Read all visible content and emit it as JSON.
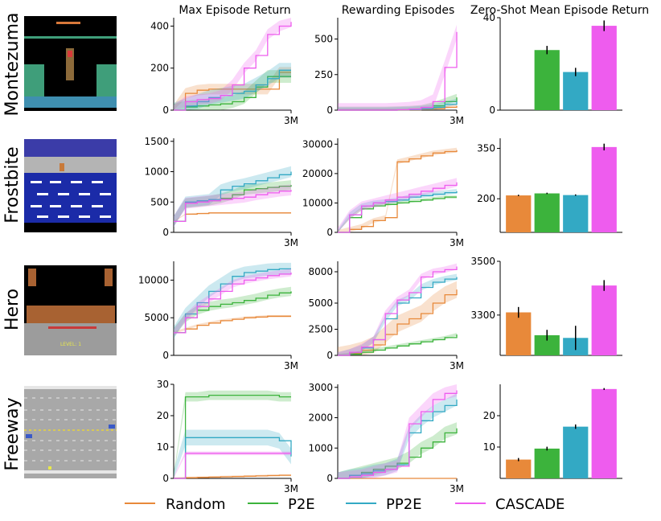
{
  "figure": {
    "column_titles": [
      "Max Episode Return",
      "Rewarding Episodes",
      "Zero-Shot Mean Episode Return"
    ],
    "legend": [
      "Random",
      "P2E",
      "PP2E",
      "CASCADE"
    ],
    "colors": {
      "Random": "#e8893a",
      "P2E": "#3cb33c",
      "PP2E": "#33a9c4",
      "CASCADE": "#ee5cee"
    },
    "x_end_label": "3M"
  },
  "games": [
    {
      "name": "Montezuma",
      "thumb_colors": {
        "bg": "#000000",
        "platform": "#3f9e7a",
        "floor": "#3f8fb0"
      }
    },
    {
      "name": "Frostbite",
      "thumb_colors": {
        "sky": "#3b3ca8",
        "shore": "#b4b4b4",
        "water": "#1b2ba8",
        "ice": "#ffffff"
      }
    },
    {
      "name": "Hero",
      "thumb_colors": {
        "bg": "#000000",
        "wall": "#a86232",
        "panel": "#9c9c9c"
      },
      "thumb_text": "LEVEL: 1"
    },
    {
      "name": "Freeway",
      "thumb_colors": {
        "road": "#a8a8a8",
        "lane": "#e6e6e6",
        "median": "#e8d43c"
      }
    }
  ],
  "chart_data": [
    {
      "type": "line",
      "game": "Montezuma",
      "metric": "Max Episode Return",
      "xlim": [
        0,
        3
      ],
      "ylim": [
        0,
        440
      ],
      "yticks": [
        0,
        200,
        400
      ],
      "x": [
        0,
        0.3,
        0.6,
        0.9,
        1.2,
        1.5,
        1.8,
        2.1,
        2.4,
        2.7,
        3.0
      ],
      "series": [
        {
          "name": "Random",
          "values": [
            0,
            80,
            95,
            100,
            100,
            100,
            100,
            100,
            100,
            180,
            180
          ],
          "spread": 25
        },
        {
          "name": "P2E",
          "values": [
            0,
            15,
            20,
            25,
            30,
            40,
            60,
            110,
            160,
            160,
            160
          ],
          "spread": 30
        },
        {
          "name": "PP2E",
          "values": [
            0,
            20,
            40,
            60,
            70,
            80,
            90,
            120,
            150,
            190,
            190
          ],
          "spread": 35
        },
        {
          "name": "CASCADE",
          "values": [
            0,
            40,
            50,
            55,
            70,
            120,
            200,
            260,
            360,
            400,
            420
          ],
          "spread": 25
        }
      ]
    },
    {
      "type": "line",
      "game": "Montezuma",
      "metric": "Rewarding Episodes",
      "xlim": [
        0,
        3
      ],
      "ylim": [
        0,
        650
      ],
      "yticks": [
        0,
        250,
        500
      ],
      "x": [
        0,
        0.3,
        0.6,
        0.9,
        1.2,
        1.5,
        1.8,
        2.1,
        2.4,
        2.7,
        3.0
      ],
      "series": [
        {
          "name": "Random",
          "values": [
            0,
            0,
            0,
            0,
            0,
            0,
            2,
            5,
            10,
            20,
            30
          ],
          "spread": 10
        },
        {
          "name": "P2E",
          "values": [
            0,
            0,
            0,
            0,
            0,
            2,
            5,
            10,
            30,
            60,
            90
          ],
          "spread": 25
        },
        {
          "name": "PP2E",
          "values": [
            0,
            0,
            0,
            0,
            0,
            2,
            4,
            10,
            20,
            40,
            60
          ],
          "spread": 20
        },
        {
          "name": "CASCADE",
          "values": [
            0,
            0,
            0,
            0,
            0,
            3,
            8,
            20,
            60,
            300,
            550
          ],
          "spread": 50
        }
      ]
    },
    {
      "type": "bar",
      "game": "Montezuma",
      "metric": "Zero-Shot Mean Episode Return",
      "categories": [
        "Random",
        "P2E",
        "PP2E",
        "CASCADE"
      ],
      "values": [
        0,
        26,
        16.5,
        36.5
      ],
      "errors": [
        0,
        1.8,
        1.8,
        2.3
      ],
      "ylim": [
        0,
        40
      ],
      "yticks": [
        0,
        40
      ]
    },
    {
      "type": "line",
      "game": "Frostbite",
      "metric": "Max Episode Return",
      "xlim": [
        0,
        3
      ],
      "ylim": [
        0,
        1550
      ],
      "yticks": [
        0,
        500,
        1000,
        1500
      ],
      "x": [
        0,
        0.3,
        0.6,
        0.9,
        1.2,
        1.5,
        1.8,
        2.1,
        2.4,
        2.7,
        3.0
      ],
      "series": [
        {
          "name": "Random",
          "values": [
            180,
            300,
            310,
            320,
            320,
            320,
            320,
            320,
            320,
            320,
            320
          ],
          "spread": 10
        },
        {
          "name": "P2E",
          "values": [
            180,
            480,
            500,
            520,
            560,
            620,
            700,
            720,
            740,
            760,
            780
          ],
          "spread": 80
        },
        {
          "name": "PP2E",
          "values": [
            180,
            500,
            520,
            540,
            700,
            760,
            800,
            850,
            900,
            950,
            1000
          ],
          "spread": 90
        },
        {
          "name": "CASCADE",
          "values": [
            180,
            480,
            500,
            520,
            540,
            560,
            580,
            620,
            650,
            680,
            700
          ],
          "spread": 90
        }
      ]
    },
    {
      "type": "line",
      "game": "Frostbite",
      "metric": "Rewarding Episodes",
      "xlim": [
        0,
        3
      ],
      "ylim": [
        0,
        32000
      ],
      "yticks": [
        0,
        10000,
        20000,
        30000
      ],
      "x": [
        0,
        0.3,
        0.6,
        0.9,
        1.2,
        1.5,
        1.8,
        2.1,
        2.4,
        2.7,
        3.0
      ],
      "series": [
        {
          "name": "Random",
          "values": [
            0,
            1000,
            2000,
            4000,
            5000,
            24000,
            25000,
            26000,
            27000,
            27500,
            28000
          ],
          "spread": 800
        },
        {
          "name": "P2E",
          "values": [
            0,
            5000,
            8000,
            9000,
            9500,
            10000,
            10500,
            11000,
            11500,
            12000,
            12000
          ],
          "spread": 500
        },
        {
          "name": "PP2E",
          "values": [
            0,
            6000,
            9000,
            10000,
            10500,
            11000,
            12000,
            12500,
            13000,
            13500,
            14000
          ],
          "spread": 800
        },
        {
          "name": "CASCADE",
          "values": [
            0,
            6000,
            9000,
            10000,
            11000,
            12000,
            13000,
            14000,
            15000,
            16000,
            17000
          ],
          "spread": 1500
        }
      ]
    },
    {
      "type": "bar",
      "game": "Frostbite",
      "metric": "Zero-Shot Mean Episode Return",
      "categories": [
        "Random",
        "P2E",
        "PP2E",
        "CASCADE"
      ],
      "values": [
        210,
        216,
        211,
        354
      ],
      "errors": [
        2,
        2,
        2,
        10
      ],
      "ylim": [
        100,
        380
      ],
      "yticks": [
        200,
        350
      ]
    },
    {
      "type": "line",
      "game": "Hero",
      "metric": "Max Episode Return",
      "xlim": [
        0,
        3
      ],
      "ylim": [
        0,
        12500
      ],
      "yticks": [
        0,
        5000,
        10000
      ],
      "x": [
        0,
        0.3,
        0.6,
        0.9,
        1.2,
        1.5,
        1.8,
        2.1,
        2.4,
        2.7,
        3.0
      ],
      "series": [
        {
          "name": "Random",
          "values": [
            3000,
            3500,
            4000,
            4300,
            4600,
            4800,
            5000,
            5100,
            5200,
            5200,
            5200
          ],
          "spread": 150
        },
        {
          "name": "P2E",
          "values": [
            3000,
            5000,
            6000,
            6500,
            6800,
            7000,
            7300,
            7600,
            8000,
            8300,
            8500
          ],
          "spread": 600
        },
        {
          "name": "PP2E",
          "values": [
            3000,
            5500,
            7000,
            8500,
            9500,
            10500,
            11000,
            11200,
            11400,
            11500,
            11500
          ],
          "spread": 800
        },
        {
          "name": "CASCADE",
          "values": [
            3000,
            5000,
            6500,
            7500,
            8500,
            9500,
            10000,
            10300,
            10600,
            10800,
            11000
          ],
          "spread": 500
        }
      ]
    },
    {
      "type": "line",
      "game": "Hero",
      "metric": "Rewarding Episodes",
      "xlim": [
        0,
        3
      ],
      "ylim": [
        0,
        9000
      ],
      "yticks": [
        0,
        2500,
        5000,
        8000
      ],
      "x": [
        0,
        0.3,
        0.6,
        0.9,
        1.2,
        1.5,
        1.8,
        2.1,
        2.4,
        2.7,
        3.0
      ],
      "series": [
        {
          "name": "Random",
          "values": [
            0,
            200,
            500,
            1000,
            2000,
            3000,
            3500,
            4000,
            5000,
            5800,
            6300
          ],
          "spread": 800
        },
        {
          "name": "P2E",
          "values": [
            0,
            100,
            300,
            500,
            700,
            900,
            1100,
            1300,
            1500,
            1700,
            2000
          ],
          "spread": 150
        },
        {
          "name": "PP2E",
          "values": [
            0,
            300,
            700,
            1500,
            3500,
            5000,
            5500,
            6500,
            7000,
            7300,
            7500
          ],
          "spread": 300
        },
        {
          "name": "CASCADE",
          "values": [
            0,
            300,
            800,
            1500,
            4000,
            5300,
            6000,
            7500,
            8000,
            8200,
            8500
          ],
          "spread": 300
        }
      ]
    },
    {
      "type": "bar",
      "game": "Hero",
      "metric": "Zero-Shot Mean Episode Return",
      "categories": [
        "Random",
        "P2E",
        "PP2E",
        "CASCADE"
      ],
      "values": [
        3310,
        3225,
        3215,
        3410
      ],
      "errors": [
        20,
        20,
        45,
        20
      ],
      "ylim": [
        3150,
        3500
      ],
      "yticks": [
        3300,
        3500
      ]
    },
    {
      "type": "line",
      "game": "Freeway",
      "metric": "Max Episode Return",
      "xlim": [
        0,
        3
      ],
      "ylim": [
        0,
        30
      ],
      "yticks": [
        0,
        10,
        20,
        30
      ],
      "x": [
        0,
        0.3,
        0.6,
        0.9,
        1.2,
        1.5,
        1.8,
        2.1,
        2.4,
        2.7,
        3.0
      ],
      "series": [
        {
          "name": "Random",
          "values": [
            0,
            0.2,
            0.3,
            0.4,
            0.5,
            0.6,
            0.7,
            0.8,
            0.9,
            1,
            1
          ],
          "spread": 0.3
        },
        {
          "name": "P2E",
          "values": [
            0,
            26,
            26,
            26.5,
            26.5,
            26.5,
            26.5,
            26.5,
            26.5,
            26,
            26
          ],
          "spread": 1.5
        },
        {
          "name": "PP2E",
          "values": [
            0,
            13,
            13,
            13,
            13,
            13,
            13,
            13,
            13,
            12,
            7
          ],
          "spread": 2.5
        },
        {
          "name": "CASCADE",
          "values": [
            0,
            8,
            8,
            8,
            8,
            8,
            8,
            8,
            8,
            8,
            8
          ],
          "spread": 0.6
        }
      ]
    },
    {
      "type": "line",
      "game": "Freeway",
      "metric": "Rewarding Episodes",
      "xlim": [
        0,
        3
      ],
      "ylim": [
        0,
        3100
      ],
      "yticks": [
        0,
        1000,
        2000,
        3000
      ],
      "x": [
        0,
        0.3,
        0.6,
        0.9,
        1.2,
        1.5,
        1.8,
        2.1,
        2.4,
        2.7,
        3.0
      ],
      "series": [
        {
          "name": "Random",
          "values": [
            0,
            0,
            0,
            0,
            0,
            0,
            0,
            0,
            0,
            0,
            0
          ],
          "spread": 5
        },
        {
          "name": "P2E",
          "values": [
            0,
            100,
            200,
            300,
            400,
            500,
            700,
            1000,
            1200,
            1500,
            1650
          ],
          "spread": 200
        },
        {
          "name": "PP2E",
          "values": [
            0,
            100,
            150,
            250,
            300,
            450,
            1500,
            1900,
            2200,
            2400,
            2600
          ],
          "spread": 200
        },
        {
          "name": "CASCADE",
          "values": [
            0,
            50,
            100,
            200,
            300,
            400,
            1800,
            2200,
            2600,
            2800,
            2900
          ],
          "spread": 200
        }
      ]
    },
    {
      "type": "bar",
      "game": "Freeway",
      "metric": "Zero-Shot Mean Episode Return",
      "categories": [
        "Random",
        "P2E",
        "PP2E",
        "CASCADE"
      ],
      "values": [
        6,
        9.5,
        16.5,
        28.5
      ],
      "errors": [
        0.5,
        0.6,
        0.7,
        0.3
      ],
      "ylim": [
        0,
        30
      ],
      "yticks": [
        10,
        20
      ]
    }
  ]
}
